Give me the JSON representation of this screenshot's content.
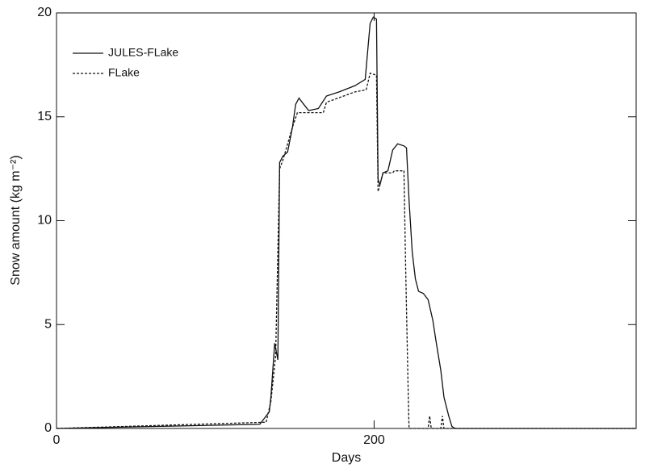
{
  "chart_data": {
    "type": "line",
    "x_label": "Days",
    "y_label": "Snow amount (kg m⁻²)",
    "xlim": [
      0,
      365
    ],
    "ylim": [
      0,
      20
    ],
    "xticks": [
      0,
      200
    ],
    "yticks": [
      0,
      5,
      10,
      15,
      20
    ],
    "legend": "top-left",
    "series": [
      {
        "name": "JULES-FLake",
        "color": "#111111",
        "dash": "solid",
        "x": [
          0,
          128,
          134,
          135,
          137.4,
          139.4,
          140.5,
          142.5,
          145.5,
          148.6,
          150.6,
          152.7,
          155.7,
          158.8,
          164.9,
          170,
          178,
          188,
          194.4,
          196,
          197.5,
          199.5,
          201.5,
          202.5,
          203.6,
          205.6,
          208.7,
          211.7,
          214.8,
          218.8,
          220.4,
          222,
          224,
          226,
          228,
          231,
          234,
          237,
          239,
          242,
          244,
          247,
          249,
          251,
          365
        ],
        "values": [
          0,
          0.2,
          0.8,
          1.5,
          4.1,
          3.3,
          12.8,
          13.1,
          13.3,
          14.5,
          15.6,
          15.9,
          15.6,
          15.3,
          15.4,
          16.0,
          16.2,
          16.5,
          16.8,
          18.2,
          19.5,
          19.8,
          19.7,
          12.0,
          11.7,
          12.3,
          12.4,
          13.4,
          13.7,
          13.6,
          13.5,
          11.0,
          8.5,
          7.2,
          6.6,
          6.5,
          6.2,
          5.2,
          4.2,
          2.8,
          1.5,
          0.6,
          0.1,
          0,
          0
        ]
      },
      {
        "name": "FLake",
        "color": "#111111",
        "dash": "dashed",
        "x": [
          0,
          132,
          135,
          138,
          140.5,
          142.5,
          148.6,
          151.7,
          168,
          170,
          188,
          195,
          197.5,
          201.5,
          202.5,
          205.6,
          211.7,
          212.7,
          218.8,
          219.8,
          221.4,
          222,
          234,
          235,
          236,
          242,
          243,
          244,
          365
        ],
        "values": [
          0,
          0.3,
          1.3,
          3.5,
          12.5,
          12.9,
          14.5,
          15.2,
          15.2,
          15.7,
          16.2,
          16.3,
          17.1,
          17.0,
          11.4,
          12.3,
          12.3,
          12.4,
          12.4,
          8.0,
          2.0,
          0,
          0,
          0.6,
          0,
          0,
          0.6,
          0,
          0
        ]
      }
    ]
  }
}
